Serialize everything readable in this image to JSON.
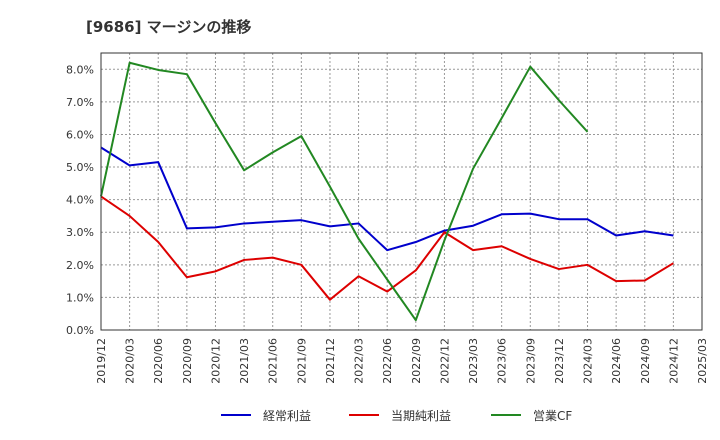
{
  "chart_data": {
    "type": "line",
    "title": "[9686]  マージンの推移",
    "xlabel": "",
    "ylabel": "",
    "ylim": [
      0,
      8.5
    ],
    "yticks": [
      "0.0%",
      "1.0%",
      "2.0%",
      "3.0%",
      "4.0%",
      "5.0%",
      "6.0%",
      "7.0%",
      "8.0%"
    ],
    "ytick_values": [
      0,
      1,
      2,
      3,
      4,
      5,
      6,
      7,
      8
    ],
    "grid": true,
    "legend_position": "bottom",
    "categories": [
      "2019/12",
      "2020/03",
      "2020/06",
      "2020/09",
      "2020/12",
      "2021/03",
      "2021/06",
      "2021/09",
      "2021/12",
      "2022/03",
      "2022/06",
      "2022/09",
      "2022/12",
      "2023/03",
      "2023/06",
      "2023/09",
      "2023/12",
      "2024/03",
      "2024/06",
      "2024/09",
      "2024/12",
      "2025/03"
    ],
    "series": [
      {
        "name": "経常利益",
        "color": "#0000cc",
        "values": [
          5.6,
          5.05,
          5.15,
          3.12,
          3.15,
          3.27,
          3.32,
          3.37,
          3.18,
          3.27,
          2.45,
          2.7,
          3.05,
          3.2,
          3.55,
          3.57,
          3.4,
          3.4,
          2.9,
          3.03,
          2.9,
          null
        ]
      },
      {
        "name": "当期純利益",
        "color": "#dd0000",
        "values": [
          4.1,
          3.5,
          2.7,
          1.62,
          1.8,
          2.15,
          2.22,
          2.0,
          0.93,
          1.65,
          1.18,
          1.83,
          3.0,
          2.45,
          2.57,
          2.18,
          1.87,
          2.0,
          1.5,
          1.52,
          2.05,
          null
        ]
      },
      {
        "name": "営業CF",
        "color": "#228822",
        "values": [
          4.1,
          8.2,
          7.98,
          7.85,
          6.35,
          4.9,
          5.45,
          5.95,
          4.4,
          2.8,
          1.55,
          0.3,
          2.75,
          4.95,
          6.5,
          8.08,
          7.05,
          6.08,
          null,
          null,
          null,
          null
        ]
      }
    ]
  }
}
